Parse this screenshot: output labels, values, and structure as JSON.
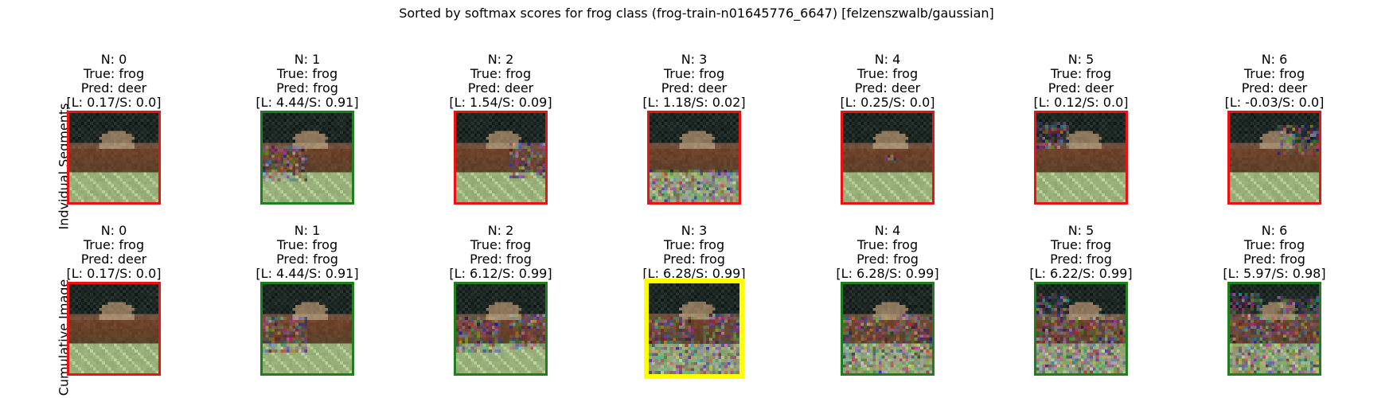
{
  "title": "Sorted by softmax scores for frog class (frog-train-n01645776_6647) [felzenszwalb/gaussian]",
  "row_labels": [
    "Indvidual Segments",
    "Cumulative Image"
  ],
  "rows": [
    {
      "name": "individual",
      "panels": [
        {
          "n": "N: 0",
          "true": "True: frog",
          "pred": "Pred: deer",
          "score": "[L: 0.17/S: 0.0]",
          "border": "#ee1111",
          "noise": "none"
        },
        {
          "n": "N: 1",
          "true": "True: frog",
          "pred": "Pred: frog",
          "score": "[L: 4.44/S: 0.91]",
          "border": "#1f7f1f",
          "noise": "left-mid"
        },
        {
          "n": "N: 2",
          "true": "True: frog",
          "pred": "Pred: deer",
          "score": "[L: 1.54/S: 0.09]",
          "border": "#ee1111",
          "noise": "right-mid"
        },
        {
          "n": "N: 3",
          "true": "True: frog",
          "pred": "Pred: deer",
          "score": "[L: 1.18/S: 0.02]",
          "border": "#ee1111",
          "noise": "bottom"
        },
        {
          "n": "N: 4",
          "true": "True: frog",
          "pred": "Pred: deer",
          "score": "[L: 0.25/S: 0.0]",
          "border": "#ee1111",
          "noise": "tiny"
        },
        {
          "n": "N: 5",
          "true": "True: frog",
          "pred": "Pred: deer",
          "score": "[L: 0.12/S: 0.0]",
          "border": "#ee1111",
          "noise": "top-left"
        },
        {
          "n": "N: 6",
          "true": "True: frog",
          "pred": "Pred: deer",
          "score": "[L: -0.03/S: 0.0]",
          "border": "#ee1111",
          "noise": "top-right"
        }
      ]
    },
    {
      "name": "cumulative",
      "panels": [
        {
          "n": "N: 0",
          "true": "True: frog",
          "pred": "Pred: deer",
          "score": "[L: 0.17/S: 0.0]",
          "border": "#ee1111",
          "noise": "none"
        },
        {
          "n": "N: 1",
          "true": "True: frog",
          "pred": "Pred: frog",
          "score": "[L: 4.44/S: 0.91]",
          "border": "#1f7f1f",
          "noise": "cum1"
        },
        {
          "n": "N: 2",
          "true": "True: frog",
          "pred": "Pred: frog",
          "score": "[L: 6.12/S: 0.99]",
          "border": "#1f7f1f",
          "noise": "cum2"
        },
        {
          "n": "N: 3",
          "true": "True: frog",
          "pred": "Pred: frog",
          "score": "[L: 6.28/S: 0.99]",
          "border": "#ffff00",
          "noise": "cum3",
          "highlight": true
        },
        {
          "n": "N: 4",
          "true": "True: frog",
          "pred": "Pred: frog",
          "score": "[L: 6.28/S: 0.99]",
          "border": "#1f7f1f",
          "noise": "cum4"
        },
        {
          "n": "N: 5",
          "true": "True: frog",
          "pred": "Pred: frog",
          "score": "[L: 6.22/S: 0.99]",
          "border": "#1f7f1f",
          "noise": "cum5"
        },
        {
          "n": "N: 6",
          "true": "True: frog",
          "pred": "Pred: frog",
          "score": "[L: 5.97/S: 0.98]",
          "border": "#1f7f1f",
          "noise": "cum6"
        }
      ]
    }
  ],
  "colors": {
    "correct": "#1f7f1f",
    "wrong": "#ee1111",
    "best": "#ffff00"
  }
}
